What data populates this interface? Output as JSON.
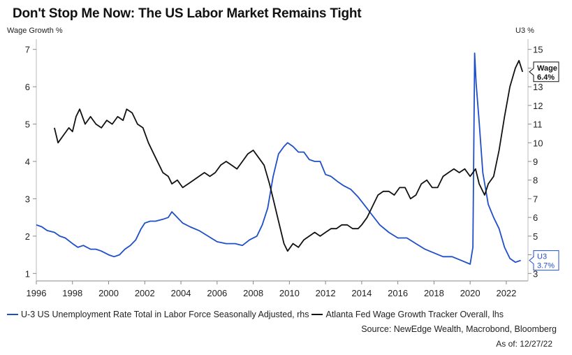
{
  "title": "Don't Stop Me Now: The US Labor Market Remains Tight",
  "source": "Source: NewEdge Wealth, Macrobond, Bloomberg",
  "as_of": "As of: 12/27/22",
  "colors": {
    "u3": "#1f4fc8",
    "wage": "#111111",
    "grid": "#d9d9d9"
  },
  "chart_data": {
    "type": "line",
    "title": "Don't Stop Me Now: The US Labor Market Remains Tight",
    "y_left_label": "Wage Growth %",
    "y_right_label": "U3 %",
    "xlim": [
      1996,
      2023.2
    ],
    "ylim_left": [
      0.8,
      7.2
    ],
    "ylim_right": [
      2.6,
      15.4
    ],
    "x_ticks": [
      1996,
      1998,
      2000,
      2002,
      2004,
      2006,
      2008,
      2010,
      2012,
      2014,
      2016,
      2018,
      2020,
      2022
    ],
    "y_left_ticks": [
      1,
      2,
      3,
      4,
      5,
      6,
      7
    ],
    "y_right_ticks": [
      3,
      4,
      5,
      6,
      7,
      8,
      9,
      10,
      11,
      12,
      13,
      14,
      15
    ],
    "series": [
      {
        "name": "U-3 US Unemployment Rate Total in Labor Force Seasonally Adjusted, rhs",
        "axis": "right",
        "callout_title": "U3",
        "callout_value": "3.7%",
        "x": [
          1996.0,
          1996.3,
          1996.6,
          1997.0,
          1997.3,
          1997.6,
          1998.0,
          1998.3,
          1998.6,
          1999.0,
          1999.3,
          1999.6,
          2000.0,
          2000.3,
          2000.6,
          2000.9,
          2001.2,
          2001.5,
          2001.8,
          2002.0,
          2002.3,
          2002.6,
          2003.0,
          2003.3,
          2003.5,
          2003.8,
          2004.1,
          2004.5,
          2005.0,
          2005.5,
          2006.0,
          2006.5,
          2007.0,
          2007.4,
          2007.8,
          2008.2,
          2008.5,
          2008.8,
          2009.1,
          2009.4,
          2009.7,
          2009.9,
          2010.2,
          2010.5,
          2010.8,
          2011.1,
          2011.4,
          2011.7,
          2012.0,
          2012.3,
          2012.7,
          2013.0,
          2013.4,
          2013.8,
          2014.2,
          2014.6,
          2015.0,
          2015.5,
          2016.0,
          2016.5,
          2017.0,
          2017.5,
          2018.0,
          2018.5,
          2019.0,
          2019.5,
          2020.0,
          2020.15,
          2020.25,
          2020.33,
          2020.5,
          2020.7,
          2021.0,
          2021.3,
          2021.6,
          2021.9,
          2022.2,
          2022.5,
          2022.8
        ],
        "values": [
          5.6,
          5.5,
          5.3,
          5.2,
          5.0,
          4.9,
          4.6,
          4.4,
          4.5,
          4.3,
          4.3,
          4.2,
          4.0,
          3.9,
          4.0,
          4.3,
          4.5,
          4.8,
          5.4,
          5.7,
          5.8,
          5.8,
          5.9,
          6.0,
          6.3,
          6.0,
          5.7,
          5.5,
          5.3,
          5.0,
          4.7,
          4.6,
          4.6,
          4.5,
          4.8,
          5.0,
          5.6,
          6.5,
          8.2,
          9.4,
          9.8,
          10.0,
          9.8,
          9.5,
          9.5,
          9.1,
          9.0,
          9.0,
          8.3,
          8.2,
          7.9,
          7.7,
          7.5,
          7.1,
          6.6,
          6.1,
          5.6,
          5.2,
          4.9,
          4.9,
          4.6,
          4.3,
          4.1,
          3.9,
          3.9,
          3.7,
          3.5,
          4.4,
          14.8,
          13.2,
          11.1,
          8.4,
          6.7,
          6.0,
          5.4,
          4.4,
          3.8,
          3.6,
          3.7
        ]
      },
      {
        "name": "Atlanta Fed Wage Growth Tracker Overall, lhs",
        "axis": "left",
        "callout_title": "Wage",
        "callout_value": "6.4%",
        "x": [
          1997.0,
          1997.2,
          1997.5,
          1997.8,
          1998.0,
          1998.2,
          1998.4,
          1998.7,
          1999.0,
          1999.3,
          1999.6,
          1999.9,
          2000.2,
          2000.5,
          2000.8,
          2001.0,
          2001.3,
          2001.6,
          2001.9,
          2002.2,
          2002.5,
          2002.8,
          2003.0,
          2003.3,
          2003.5,
          2003.8,
          2004.1,
          2004.4,
          2004.7,
          2005.0,
          2005.3,
          2005.6,
          2005.9,
          2006.2,
          2006.5,
          2006.8,
          2007.1,
          2007.4,
          2007.7,
          2008.0,
          2008.3,
          2008.6,
          2008.9,
          2009.1,
          2009.4,
          2009.7,
          2009.9,
          2010.2,
          2010.5,
          2010.8,
          2011.1,
          2011.4,
          2011.7,
          2012.0,
          2012.3,
          2012.6,
          2012.9,
          2013.2,
          2013.5,
          2013.8,
          2014.0,
          2014.3,
          2014.6,
          2014.9,
          2015.2,
          2015.5,
          2015.8,
          2016.1,
          2016.4,
          2016.7,
          2017.0,
          2017.3,
          2017.6,
          2017.9,
          2018.2,
          2018.5,
          2018.8,
          2019.1,
          2019.4,
          2019.7,
          2020.0,
          2020.3,
          2020.5,
          2020.8,
          2021.0,
          2021.3,
          2021.6,
          2021.9,
          2022.2,
          2022.5,
          2022.7,
          2022.9
        ],
        "values": [
          4.9,
          4.5,
          4.7,
          4.9,
          4.8,
          5.2,
          5.4,
          5.0,
          5.2,
          5.0,
          4.9,
          5.1,
          5.0,
          5.2,
          5.1,
          5.4,
          5.3,
          5.0,
          4.9,
          4.5,
          4.2,
          3.9,
          3.7,
          3.6,
          3.4,
          3.5,
          3.3,
          3.4,
          3.5,
          3.6,
          3.7,
          3.6,
          3.7,
          3.9,
          4.0,
          3.9,
          3.8,
          4.0,
          4.2,
          4.3,
          4.1,
          3.9,
          3.4,
          3.0,
          2.4,
          1.8,
          1.6,
          1.8,
          1.7,
          1.9,
          2.0,
          2.1,
          2.0,
          2.1,
          2.2,
          2.2,
          2.3,
          2.3,
          2.2,
          2.2,
          2.3,
          2.5,
          2.8,
          3.1,
          3.2,
          3.2,
          3.1,
          3.3,
          3.3,
          3.0,
          3.1,
          3.4,
          3.5,
          3.3,
          3.3,
          3.6,
          3.7,
          3.8,
          3.7,
          3.8,
          3.6,
          3.8,
          3.4,
          3.1,
          3.4,
          3.6,
          4.3,
          5.2,
          6.0,
          6.5,
          6.7,
          6.4
        ]
      }
    ]
  }
}
